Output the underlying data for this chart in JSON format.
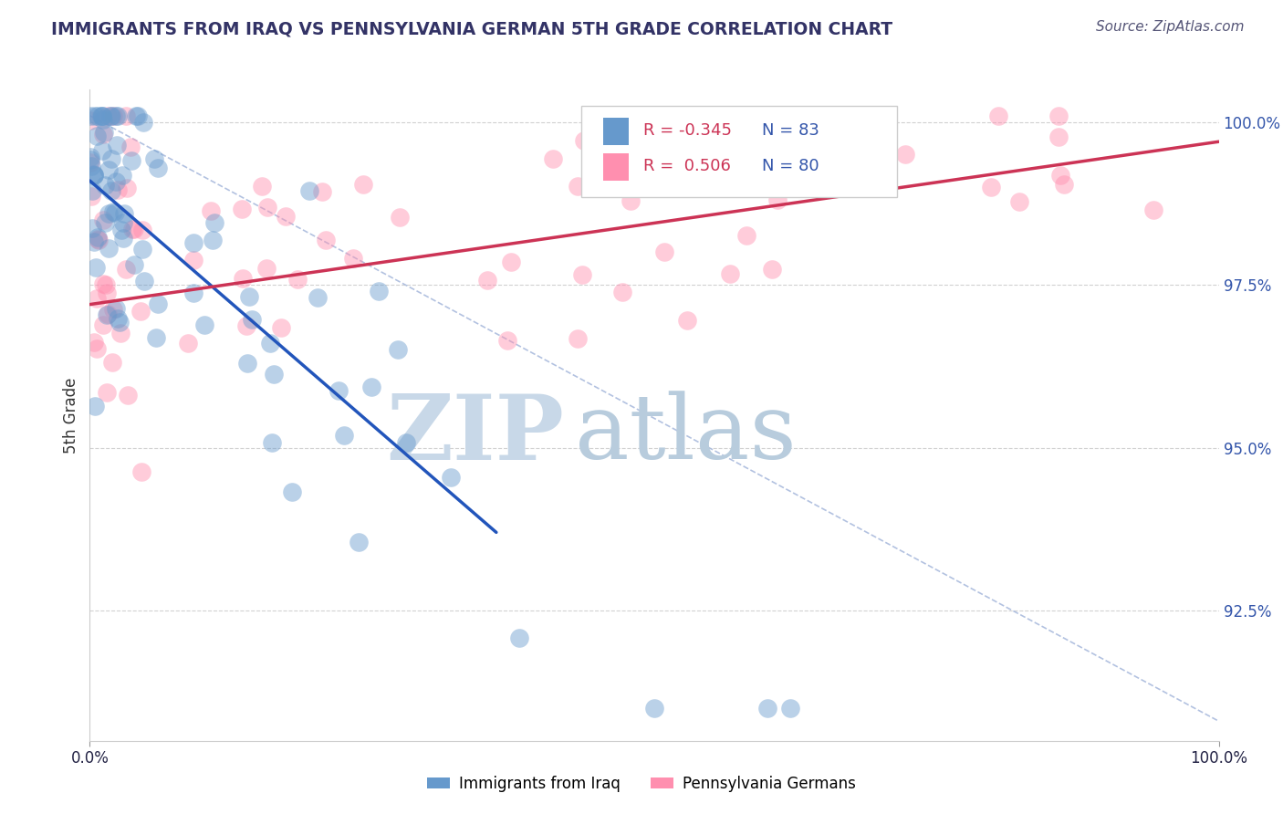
{
  "title": "IMMIGRANTS FROM IRAQ VS PENNSYLVANIA GERMAN 5TH GRADE CORRELATION CHART",
  "source": "Source: ZipAtlas.com",
  "ylabel": "5th Grade",
  "xlim": [
    0.0,
    1.0
  ],
  "ylim": [
    0.905,
    1.005
  ],
  "yticks": [
    0.925,
    0.95,
    0.975,
    1.0
  ],
  "ytick_labels": [
    "92.5%",
    "95.0%",
    "97.5%",
    "100.0%"
  ],
  "legend_entries": [
    "Immigrants from Iraq",
    "Pennsylvania Germans"
  ],
  "blue_color": "#6699CC",
  "pink_color": "#FF8FAF",
  "blue_R": -0.345,
  "blue_N": 83,
  "pink_R": 0.506,
  "pink_N": 80,
  "blue_line_start_x": 0.0,
  "blue_line_start_y": 0.991,
  "blue_line_end_x": 0.36,
  "blue_line_end_y": 0.937,
  "pink_line_start_x": 0.0,
  "pink_line_start_y": 0.972,
  "pink_line_end_x": 1.0,
  "pink_line_end_y": 0.997,
  "diag_line_start_x": 0.0,
  "diag_line_start_y": 1.001,
  "diag_line_end_x": 1.0,
  "diag_line_end_y": 0.908,
  "background_color": "#ffffff",
  "grid_color": "#cccccc",
  "title_color": "#333366",
  "source_color": "#555577",
  "watermark_zip_color": "#c8d8e8",
  "watermark_atlas_color": "#b0c8e0",
  "legend_R_color": "#CC3355",
  "legend_N_color": "#3355AA"
}
